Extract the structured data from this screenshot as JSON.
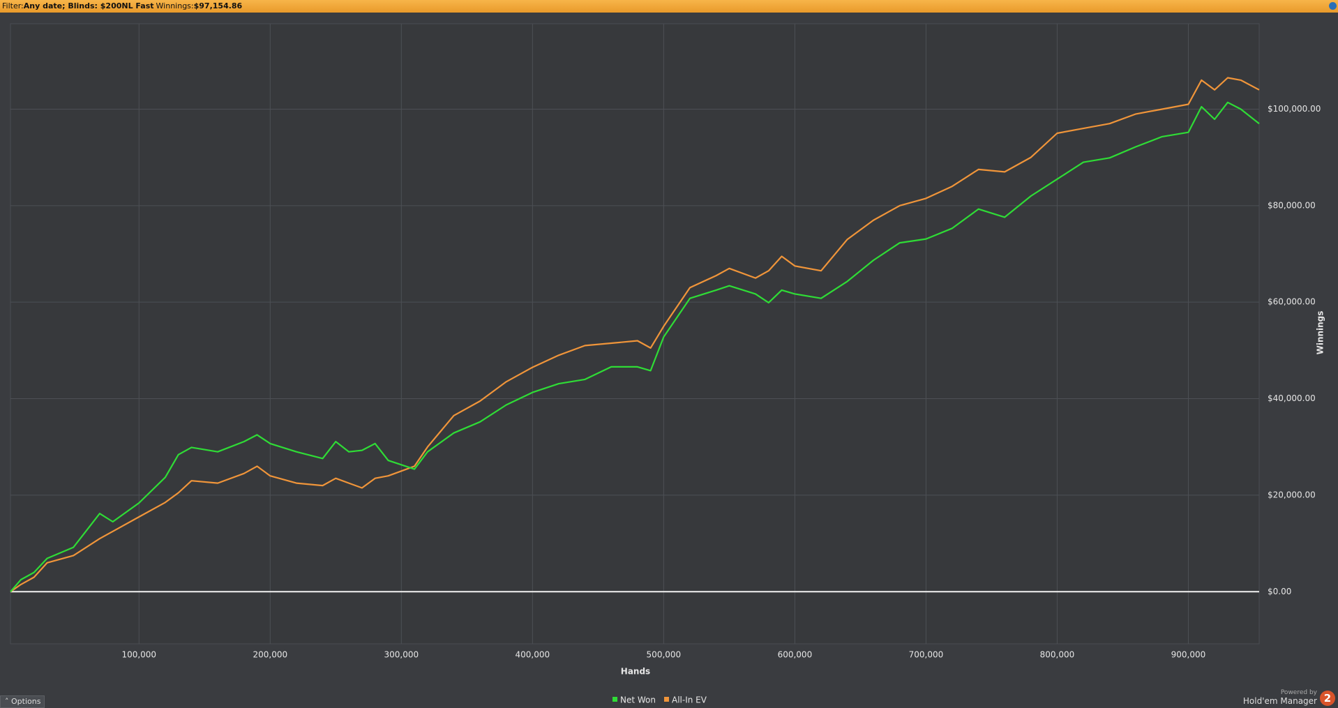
{
  "filter_bar": {
    "filter_label": "Filter:",
    "filter_value": "Any date; Blinds: $200NL Fast",
    "winnings_label": "Winnings:",
    "winnings_value": "$97,154.86"
  },
  "options_button": "Options",
  "branding": {
    "powered_by": "Powered by",
    "product": "Hold'em Manager",
    "logo": "2"
  },
  "chart_data": {
    "type": "line",
    "x_label": "Hands",
    "y_label": "Winnings",
    "x": [
      2000,
      10000,
      20000,
      30000,
      50000,
      70000,
      80000,
      100000,
      120000,
      130000,
      140000,
      160000,
      180000,
      190000,
      200000,
      220000,
      240000,
      250000,
      260000,
      270000,
      280000,
      290000,
      300000,
      310000,
      320000,
      340000,
      360000,
      380000,
      400000,
      420000,
      440000,
      460000,
      480000,
      490000,
      500000,
      520000,
      540000,
      550000,
      570000,
      580000,
      590000,
      600000,
      620000,
      640000,
      660000,
      680000,
      700000,
      720000,
      740000,
      760000,
      780000,
      800000,
      820000,
      840000,
      860000,
      880000,
      900000,
      910000,
      920000,
      930000,
      940000,
      954000
    ],
    "series": [
      {
        "name": "Net Won",
        "color": "#2fdc36",
        "values": [
          0,
          2500,
          4000,
          6900,
          9200,
          16200,
          14500,
          18400,
          23700,
          28400,
          29900,
          29000,
          31100,
          32500,
          30700,
          29000,
          27600,
          31100,
          29000,
          29300,
          30700,
          27200,
          26300,
          25400,
          29000,
          32900,
          35200,
          38700,
          41300,
          43100,
          44000,
          46600,
          46600,
          45800,
          52800,
          60800,
          62500,
          63400,
          61700,
          59900,
          62500,
          61700,
          60800,
          64300,
          68700,
          72300,
          73100,
          75300,
          79300,
          77600,
          82000,
          85500,
          89000,
          89900,
          92200,
          94300,
          95200,
          100500,
          97900,
          101400,
          100000,
          97000
        ]
      },
      {
        "name": "All-In EV",
        "color": "#f0953a",
        "values": [
          0,
          1500,
          3000,
          6000,
          7500,
          11000,
          12500,
          15500,
          18500,
          20500,
          23000,
          22500,
          24500,
          26000,
          24000,
          22500,
          22000,
          23500,
          22500,
          21500,
          23500,
          24000,
          25000,
          26000,
          30000,
          36500,
          39500,
          43500,
          46500,
          49000,
          51000,
          51500,
          52000,
          50500,
          55000,
          63000,
          65500,
          67000,
          65000,
          66500,
          69500,
          67500,
          66500,
          73000,
          77000,
          80000,
          81500,
          84000,
          87500,
          87000,
          90000,
          95000,
          96000,
          97000,
          99000,
          100000,
          101000,
          106000,
          104000,
          106500,
          106000,
          104000
        ]
      }
    ],
    "xlim": [
      2000,
      954000
    ],
    "ylim": [
      -10800,
      117700
    ],
    "xticks": [
      {
        "value": 100000,
        "label": "100,000"
      },
      {
        "value": 200000,
        "label": "200,000"
      },
      {
        "value": 300000,
        "label": "300,000"
      },
      {
        "value": 400000,
        "label": "400,000"
      },
      {
        "value": 500000,
        "label": "500,000"
      },
      {
        "value": 600000,
        "label": "600,000"
      },
      {
        "value": 700000,
        "label": "700,000"
      },
      {
        "value": 800000,
        "label": "800,000"
      },
      {
        "value": 900000,
        "label": "900,000"
      }
    ],
    "yticks": [
      {
        "value": 0,
        "label": "$0.00"
      },
      {
        "value": 20000,
        "label": "$20,000.00"
      },
      {
        "value": 40000,
        "label": "$40,000.00"
      },
      {
        "value": 60000,
        "label": "$60,000.00"
      },
      {
        "value": 80000,
        "label": "$80,000.00"
      },
      {
        "value": 100000,
        "label": "$100,000.00"
      }
    ],
    "grid": true,
    "legend": "bottom"
  }
}
